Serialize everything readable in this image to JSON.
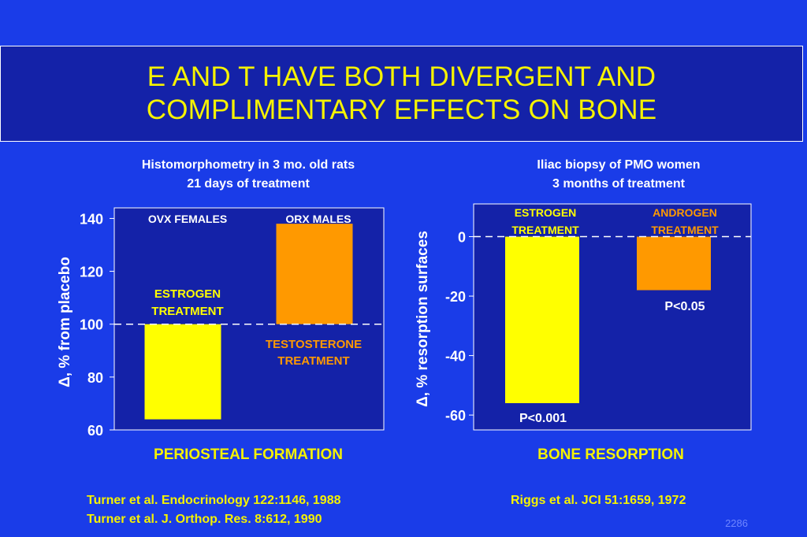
{
  "slide": {
    "title_line1": "E AND T HAVE BOTH DIVERGENT AND",
    "title_line2": "COMPLIMENTARY EFFECTS ON BONE",
    "slide_number": "2286"
  },
  "left_panel": {
    "subtitle_line1": "Histomorphometry in 3 mo. old rats",
    "subtitle_line2": "21 days of treatment",
    "footer": "PERIOSTEAL FORMATION",
    "refs": [
      "Turner et al. Endocrinology 122:1146, 1988",
      "Turner et al. J. Orthop. Res. 8:612, 1990"
    ],
    "ylabel": "Δ, % from placebo",
    "group_labels": [
      "OVX FEMALES",
      "ORX MALES"
    ],
    "bar_labels": [
      [
        "ESTROGEN",
        "TREATMENT"
      ],
      [
        "TESTOSTERONE",
        "TREATMENT"
      ]
    ]
  },
  "right_panel": {
    "subtitle_line1": "Iliac biopsy of PMO women",
    "subtitle_line2": "3 months of treatment",
    "footer": "BONE RESORPTION",
    "refs": [
      "Riggs et al. JCI 51:1659, 1972"
    ],
    "ylabel": "Δ, % resorption surfaces",
    "bar_labels": [
      [
        "ESTROGEN",
        "TREATMENT"
      ],
      [
        "ANDROGEN",
        "TREATMENT"
      ]
    ],
    "p_values": [
      "P<0.001",
      "P<0.05"
    ]
  },
  "colors": {
    "background": "#1a3ce8",
    "plot_bg": "#1422a8",
    "estrogen": "#ffff00",
    "testosterone": "#ff9900",
    "title_text": "#f5f200"
  },
  "chart_data": [
    {
      "type": "bar",
      "categories": [
        "OVX FEMALES",
        "ORX MALES"
      ],
      "baseline": 100,
      "series": [
        {
          "name": "ESTROGEN TREATMENT",
          "category": "OVX FEMALES",
          "value": 64
        },
        {
          "name": "TESTOSTERONE TREATMENT",
          "category": "ORX MALES",
          "value": 138
        }
      ],
      "yticks": [
        60,
        80,
        100,
        120,
        140
      ],
      "ylim": [
        60,
        144
      ],
      "reference_line": 100,
      "ylabel": "Δ, % from placebo",
      "xlabel": "PERIOSTEAL FORMATION"
    },
    {
      "type": "bar",
      "categories": [
        "ESTROGEN TREATMENT",
        "ANDROGEN TREATMENT"
      ],
      "baseline": 0,
      "series": [
        {
          "name": "ESTROGEN TREATMENT",
          "value": -56,
          "annotation": "P<0.001"
        },
        {
          "name": "ANDROGEN TREATMENT",
          "value": -18,
          "annotation": "P<0.05"
        }
      ],
      "yticks": [
        0,
        -20,
        -40,
        -60
      ],
      "ylim": [
        -65,
        11
      ],
      "reference_line": 0,
      "ylabel": "Δ, % resorption surfaces",
      "xlabel": "BONE RESORPTION"
    }
  ]
}
